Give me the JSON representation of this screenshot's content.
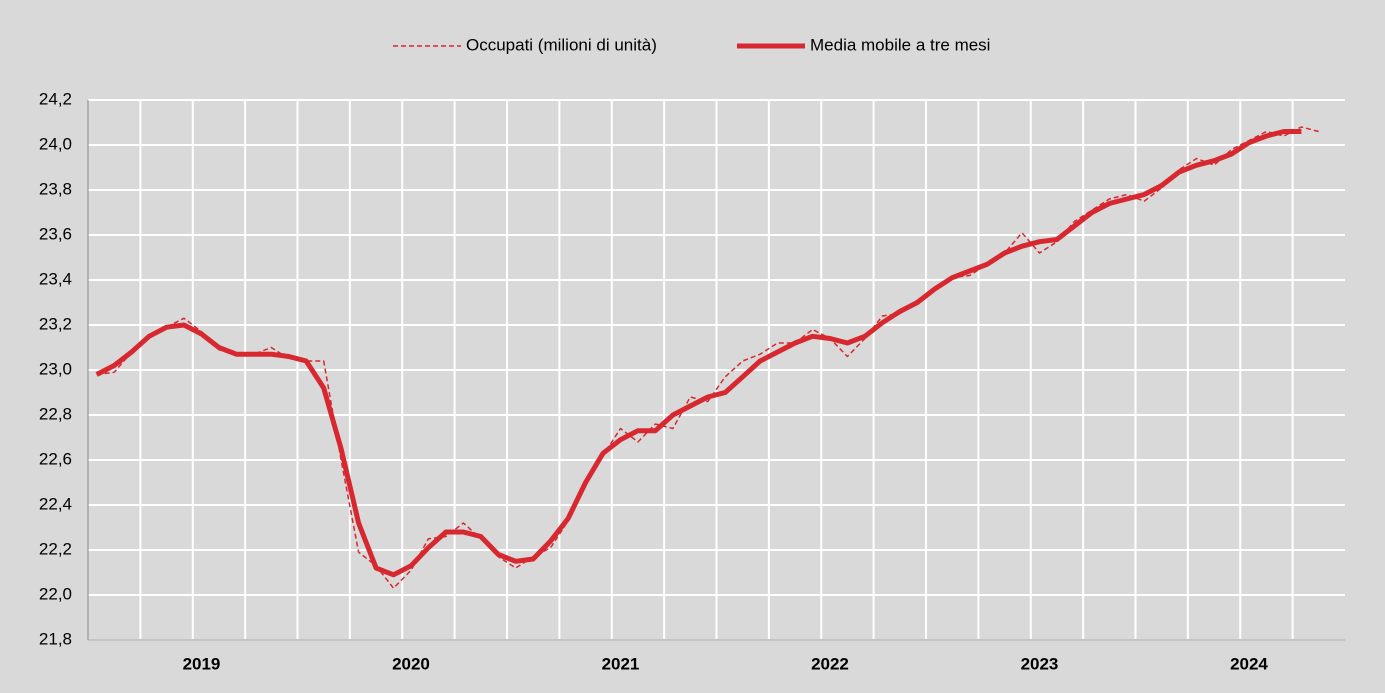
{
  "chart_data": {
    "type": "line",
    "categories": [
      null,
      null,
      null,
      null,
      null,
      null,
      "2019",
      null,
      null,
      null,
      null,
      null,
      null,
      null,
      null,
      null,
      null,
      null,
      "2020",
      null,
      null,
      null,
      null,
      null,
      null,
      null,
      null,
      null,
      null,
      null,
      "2021",
      null,
      null,
      null,
      null,
      null,
      null,
      null,
      null,
      null,
      null,
      null,
      "2022",
      null,
      null,
      null,
      null,
      null,
      null,
      null,
      null,
      null,
      null,
      null,
      "2023",
      null,
      null,
      null,
      null,
      null,
      null,
      null,
      null,
      null,
      null,
      null,
      "2024",
      null,
      null,
      null,
      null,
      null
    ],
    "series": [
      {
        "name": "Occupati (milioni di unità)",
        "color": "#d7282f",
        "style": "dashed",
        "values": [
          22.98,
          22.99,
          23.08,
          23.15,
          23.19,
          23.23,
          23.17,
          23.09,
          23.07,
          23.07,
          23.1,
          23.05,
          23.04,
          23.04,
          22.6,
          22.19,
          22.13,
          22.03,
          22.11,
          22.25,
          22.26,
          22.32,
          22.25,
          22.17,
          22.12,
          22.17,
          22.21,
          22.33,
          22.5,
          22.62,
          22.74,
          22.68,
          22.76,
          22.74,
          22.88,
          22.86,
          22.97,
          23.04,
          23.07,
          23.12,
          23.12,
          23.18,
          23.14,
          23.06,
          23.14,
          23.24,
          23.25,
          23.31,
          23.36,
          23.41,
          23.42,
          23.47,
          23.52,
          23.61,
          23.52,
          23.57,
          23.66,
          23.71,
          23.76,
          23.78,
          23.75,
          23.81,
          23.89,
          23.94,
          23.91,
          23.98,
          24.02,
          24.06,
          24.04,
          24.08,
          24.06,
          null
        ]
      },
      {
        "name": "Media mobile a tre mesi",
        "color": "#d7282f",
        "style": "solid",
        "values": [
          22.98,
          23.02,
          23.08,
          23.15,
          23.19,
          23.2,
          23.16,
          23.1,
          23.07,
          23.07,
          23.07,
          23.06,
          23.04,
          22.92,
          22.65,
          22.32,
          22.12,
          22.09,
          22.13,
          22.21,
          22.28,
          22.28,
          22.26,
          22.18,
          22.15,
          22.16,
          22.24,
          22.34,
          22.5,
          22.63,
          22.69,
          22.73,
          22.73,
          22.8,
          22.84,
          22.88,
          22.9,
          22.97,
          23.04,
          23.08,
          23.12,
          23.15,
          23.14,
          23.12,
          23.15,
          23.21,
          23.26,
          23.3,
          23.36,
          23.41,
          23.44,
          23.47,
          23.52,
          23.55,
          23.57,
          23.58,
          23.64,
          23.7,
          23.74,
          23.76,
          23.78,
          23.82,
          23.88,
          23.91,
          23.93,
          23.96,
          24.01,
          24.04,
          24.06,
          24.06,
          null,
          null
        ]
      }
    ],
    "ylim": [
      21.8,
      24.2
    ],
    "yticks": [
      {
        "value": 21.8,
        "label": "21,8"
      },
      {
        "value": 22.0,
        "label": "22,0"
      },
      {
        "value": 22.2,
        "label": "22,2"
      },
      {
        "value": 22.4,
        "label": "22,4"
      },
      {
        "value": 22.6,
        "label": "22,6"
      },
      {
        "value": 22.8,
        "label": "22,8"
      },
      {
        "value": 23.0,
        "label": "23,0"
      },
      {
        "value": 23.2,
        "label": "23,2"
      },
      {
        "value": 23.4,
        "label": "23,4"
      },
      {
        "value": 23.6,
        "label": "23,6"
      },
      {
        "value": 23.8,
        "label": "23,8"
      },
      {
        "value": 24.0,
        "label": "24,0"
      },
      {
        "value": 24.2,
        "label": "24,2"
      }
    ],
    "grid": true,
    "legend": "top"
  }
}
